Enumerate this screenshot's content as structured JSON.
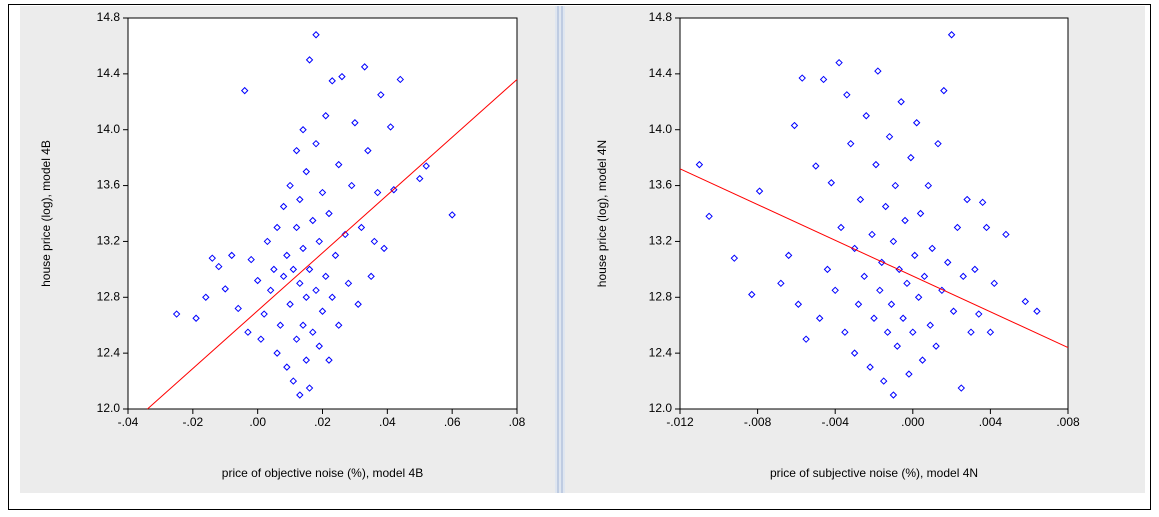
{
  "chart_data": [
    {
      "type": "scatter",
      "x_label": "price of objective noise (%), model 4B",
      "y_label": "house price (log), model 4B",
      "xlim": [
        -0.04,
        0.08
      ],
      "ylim": [
        12.0,
        14.8
      ],
      "xticks": [
        {
          "value": -0.04,
          "label": "-.04"
        },
        {
          "value": -0.02,
          "label": "-.02"
        },
        {
          "value": 0,
          "label": ".00"
        },
        {
          "value": 0.02,
          "label": ".02"
        },
        {
          "value": 0.04,
          "label": ".04"
        },
        {
          "value": 0.06,
          "label": ".06"
        },
        {
          "value": 0.08,
          "label": ".08"
        }
      ],
      "yticks": [
        {
          "value": 12,
          "label": "12.0"
        },
        12.4,
        12.8,
        13.2,
        13.6,
        {
          "value": 14,
          "label": "14.0"
        },
        14.4,
        14.8
      ],
      "series": [
        {
          "color": "#0000ff",
          "x": [
            -0.025,
            -0.019,
            -0.016,
            -0.014,
            -0.012,
            -0.01,
            -0.008,
            -0.006,
            -0.004,
            -0.003,
            -0.002,
            0.0,
            0.001,
            0.002,
            0.003,
            0.004,
            0.005,
            0.006,
            0.006,
            0.007,
            0.008,
            0.008,
            0.009,
            0.009,
            0.01,
            0.01,
            0.011,
            0.011,
            0.012,
            0.012,
            0.012,
            0.013,
            0.013,
            0.013,
            0.014,
            0.014,
            0.014,
            0.015,
            0.015,
            0.015,
            0.016,
            0.016,
            0.016,
            0.017,
            0.017,
            0.018,
            0.018,
            0.018,
            0.019,
            0.019,
            0.02,
            0.02,
            0.021,
            0.021,
            0.022,
            0.022,
            0.023,
            0.023,
            0.024,
            0.025,
            0.025,
            0.026,
            0.027,
            0.028,
            0.029,
            0.03,
            0.031,
            0.032,
            0.033,
            0.034,
            0.035,
            0.036,
            0.037,
            0.038,
            0.039,
            0.041,
            0.042,
            0.044,
            0.05,
            0.052,
            0.06
          ],
          "y": [
            12.68,
            12.65,
            12.8,
            13.08,
            13.02,
            12.86,
            13.1,
            12.72,
            14.28,
            12.55,
            13.07,
            12.92,
            12.5,
            12.68,
            13.2,
            12.85,
            13.0,
            12.4,
            13.3,
            12.6,
            12.95,
            13.45,
            12.3,
            13.1,
            12.75,
            13.6,
            12.2,
            13.0,
            12.5,
            13.3,
            13.85,
            12.1,
            12.9,
            13.5,
            12.6,
            13.15,
            14.0,
            12.35,
            12.8,
            13.7,
            12.15,
            13.0,
            14.5,
            12.55,
            13.35,
            14.68,
            12.85,
            13.9,
            12.45,
            13.2,
            12.7,
            13.55,
            14.1,
            12.95,
            12.35,
            13.4,
            14.35,
            12.8,
            13.1,
            13.75,
            12.6,
            14.38,
            13.25,
            12.9,
            13.6,
            14.05,
            12.75,
            13.3,
            14.45,
            13.85,
            12.95,
            13.2,
            13.55,
            14.25,
            13.15,
            14.02,
            13.57,
            14.36,
            13.65,
            13.74,
            13.39
          ]
        }
      ],
      "fit_line": {
        "color": "#ff0000",
        "x": [
          -0.034,
          0.08
        ],
        "y": [
          12.0,
          14.36
        ]
      }
    },
    {
      "type": "scatter",
      "x_label": "price of subjective noise (%), model 4N",
      "y_label": "house price (log), model 4N",
      "xlim": [
        -0.012,
        0.008
      ],
      "ylim": [
        12.0,
        14.8
      ],
      "xticks": [
        {
          "value": -0.012,
          "label": "-.012"
        },
        {
          "value": -0.008,
          "label": "-.008"
        },
        {
          "value": -0.004,
          "label": "-.004"
        },
        {
          "value": 0,
          "label": ".000"
        },
        {
          "value": 0.004,
          "label": ".004"
        },
        {
          "value": 0.008,
          "label": ".008"
        }
      ],
      "yticks": [
        {
          "value": 12,
          "label": "12.0"
        },
        12.4,
        12.8,
        13.2,
        13.6,
        {
          "value": 14,
          "label": "14.0"
        },
        14.4,
        14.8
      ],
      "series": [
        {
          "color": "#0000ff",
          "x": [
            -0.011,
            -0.0105,
            -0.0092,
            -0.0083,
            -0.0079,
            -0.0068,
            -0.0064,
            -0.0061,
            -0.0059,
            -0.0057,
            -0.0055,
            -0.005,
            -0.0048,
            -0.0046,
            -0.0044,
            -0.0042,
            -0.004,
            -0.0038,
            -0.0037,
            -0.0035,
            -0.0034,
            -0.0032,
            -0.003,
            -0.003,
            -0.0028,
            -0.0027,
            -0.0025,
            -0.0024,
            -0.0022,
            -0.0021,
            -0.002,
            -0.0019,
            -0.0018,
            -0.0017,
            -0.0016,
            -0.0015,
            -0.0014,
            -0.0013,
            -0.0012,
            -0.0011,
            -0.001,
            -0.001,
            -0.0009,
            -0.0008,
            -0.0007,
            -0.0006,
            -0.0005,
            -0.0004,
            -0.0003,
            -0.0002,
            -0.0001,
            0.0,
            0.0001,
            0.0002,
            0.0003,
            0.0004,
            0.0005,
            0.0006,
            0.0008,
            0.0009,
            0.001,
            0.0012,
            0.0013,
            0.0015,
            0.0016,
            0.0018,
            0.002,
            0.0021,
            0.0023,
            0.0025,
            0.0026,
            0.0028,
            0.003,
            0.0032,
            0.0034,
            0.0036,
            0.0038,
            0.004,
            0.0042,
            0.0048,
            0.0058,
            0.0064
          ],
          "y": [
            13.75,
            13.38,
            13.08,
            12.82,
            13.56,
            12.9,
            13.1,
            14.03,
            12.75,
            14.37,
            12.5,
            13.74,
            12.65,
            14.36,
            13.0,
            13.62,
            12.85,
            14.48,
            13.3,
            12.55,
            14.25,
            13.9,
            12.4,
            13.15,
            12.75,
            13.5,
            12.95,
            14.1,
            12.3,
            13.25,
            12.65,
            13.75,
            14.42,
            12.85,
            13.05,
            12.2,
            13.45,
            12.55,
            13.95,
            12.75,
            13.2,
            12.1,
            13.6,
            12.45,
            13.0,
            14.2,
            12.65,
            13.35,
            12.9,
            12.25,
            13.8,
            12.55,
            13.1,
            14.05,
            12.8,
            13.4,
            12.35,
            12.95,
            13.6,
            12.6,
            13.15,
            12.45,
            13.9,
            12.85,
            14.28,
            13.05,
            14.68,
            12.7,
            13.3,
            12.15,
            12.95,
            13.5,
            12.55,
            13.0,
            12.68,
            13.48,
            13.3,
            12.55,
            12.9,
            13.25,
            12.77,
            12.7
          ]
        }
      ],
      "fit_line": {
        "color": "#ff0000",
        "x": [
          -0.012,
          0.008
        ],
        "y": [
          13.72,
          12.44
        ]
      }
    }
  ]
}
